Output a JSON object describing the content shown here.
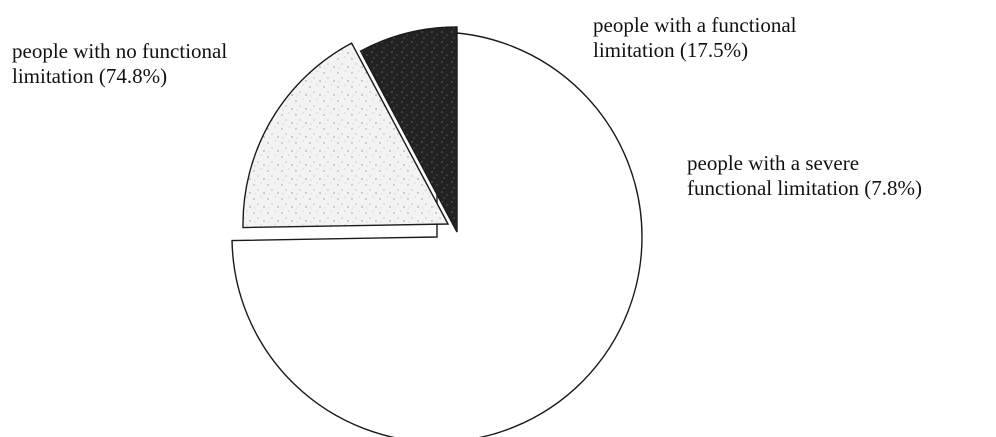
{
  "chart_data": {
    "type": "pie",
    "title": "",
    "slices": [
      {
        "label_lines": [
          "people with no functional",
          "limitation (74.8%)"
        ],
        "value": 74.8,
        "fill": "#ffffff",
        "texture": "none"
      },
      {
        "label_lines": [
          "people with a functional",
          "limitation (17.5%)"
        ],
        "value": 17.5,
        "fill": "#f1f1f1",
        "texture": "light-speckle"
      },
      {
        "label_lines": [
          "people with a severe",
          "functional limitation (7.8%)"
        ],
        "value": 7.8,
        "fill": "#262626",
        "texture": "dark-speckle"
      }
    ],
    "start_angle_deg": 0,
    "direction": "clockwise",
    "exploded": true,
    "legend": "none"
  }
}
